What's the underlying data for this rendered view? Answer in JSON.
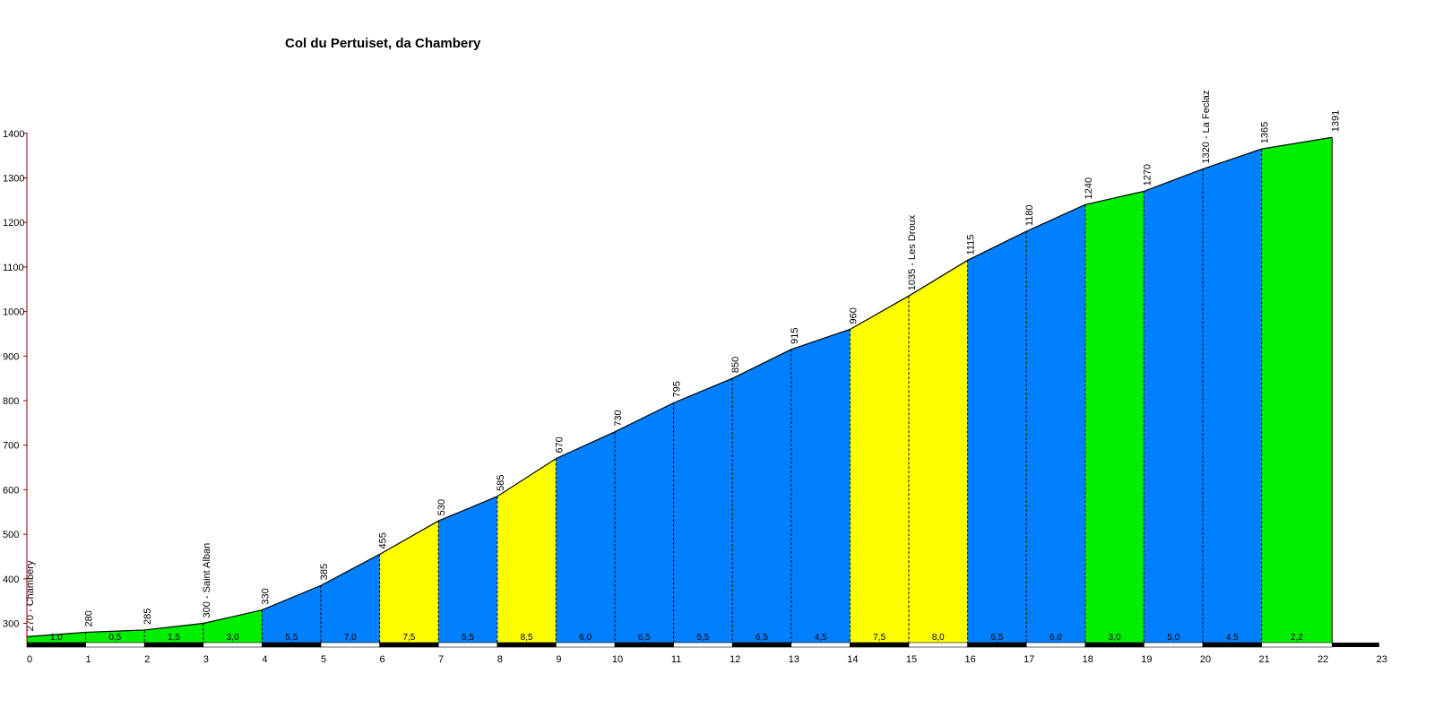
{
  "chart_data": {
    "type": "area",
    "title": "Col du Pertuiset, da Chambery",
    "xlabel": "",
    "ylabel": "",
    "xlim": [
      0,
      23
    ],
    "ylim": [
      250,
      1400
    ],
    "x_ticks": [
      "0",
      "1",
      "2",
      "3",
      "4",
      "5",
      "6",
      "7",
      "8",
      "9",
      "10",
      "11",
      "12",
      "13",
      "14",
      "15",
      "16",
      "17",
      "18",
      "19",
      "20",
      "21",
      "22",
      "23"
    ],
    "y_ticks": [
      "300",
      "400",
      "500",
      "600",
      "700",
      "800",
      "900",
      "1000",
      "1100",
      "1200",
      "1300",
      "1400"
    ],
    "profile": {
      "km": [
        0,
        1,
        2,
        3,
        4,
        5,
        6,
        7,
        8,
        9,
        10,
        11,
        12,
        13,
        14,
        15,
        16,
        17,
        18,
        19,
        20,
        21,
        22.2
      ],
      "altitude": [
        270,
        280,
        285,
        300,
        330,
        385,
        455,
        530,
        585,
        670,
        730,
        795,
        850,
        915,
        960,
        1035,
        1115,
        1180,
        1240,
        1270,
        1320,
        1365,
        1391
      ],
      "labels": [
        "270 - Chambery",
        "280",
        "285",
        "300 - Saint Alban",
        "330",
        "385",
        "455",
        "530",
        "585",
        "670",
        "730",
        "795",
        "850",
        "915",
        "960",
        "1035 - Les Droux",
        "1115",
        "1180",
        "1240",
        "1270",
        "1320 - La Feclaz",
        "1365",
        "1391"
      ]
    },
    "segments": {
      "gradients": [
        "1,0",
        "0,5",
        "1,5",
        "3,0",
        "5,5",
        "7,0",
        "7,5",
        "5,5",
        "8,5",
        "6,0",
        "6,5",
        "5,5",
        "6,5",
        "4,5",
        "7,5",
        "8,0",
        "6,5",
        "6,0",
        "3,0",
        "5,0",
        "4,5",
        "2,2"
      ],
      "colors": [
        "#00ee00",
        "#00ee00",
        "#00ee00",
        "#00ee00",
        "#0080ff",
        "#0080ff",
        "#ffff00",
        "#0080ff",
        "#ffff00",
        "#0080ff",
        "#0080ff",
        "#0080ff",
        "#0080ff",
        "#0080ff",
        "#ffff00",
        "#ffff00",
        "#0080ff",
        "#0080ff",
        "#00ee00",
        "#0080ff",
        "#0080ff",
        "#00ee00"
      ]
    },
    "grid": false
  }
}
